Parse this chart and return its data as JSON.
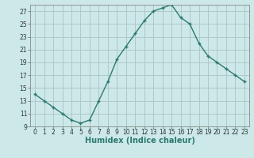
{
  "xlabel": "Humidex (Indice chaleur)",
  "ylabel": "",
  "x": [
    0,
    1,
    2,
    3,
    4,
    5,
    6,
    7,
    8,
    9,
    10,
    11,
    12,
    13,
    14,
    15,
    16,
    17,
    18,
    19,
    20,
    21,
    22,
    23
  ],
  "y": [
    14,
    13,
    12,
    11,
    10,
    9.5,
    10,
    13,
    16,
    19.5,
    21.5,
    23.5,
    25.5,
    27,
    27.5,
    28,
    26,
    25,
    22,
    20,
    19,
    18,
    17,
    16
  ],
  "line_color": "#2d7a6e",
  "marker": "+",
  "bg_color": "#cce8e8",
  "grid_color": "#b0c8c8",
  "xlim": [
    -0.5,
    23.5
  ],
  "ylim": [
    9,
    28
  ],
  "yticks": [
    9,
    11,
    13,
    15,
    17,
    19,
    21,
    23,
    25,
    27
  ],
  "xticks": [
    0,
    1,
    2,
    3,
    4,
    5,
    6,
    7,
    8,
    9,
    10,
    11,
    12,
    13,
    14,
    15,
    16,
    17,
    18,
    19,
    20,
    21,
    22,
    23
  ],
  "tick_fontsize": 5.5,
  "xlabel_fontsize": 7
}
